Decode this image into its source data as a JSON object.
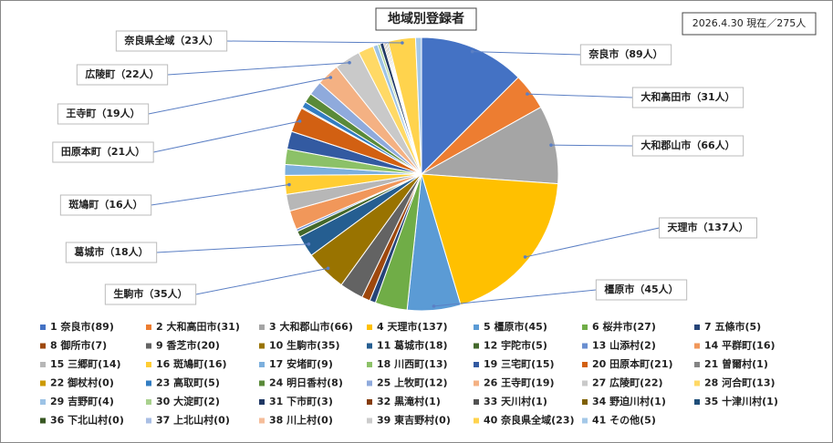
{
  "chart_data": {
    "type": "pie",
    "title": "地域別登録者",
    "subtitle": "2026.4.30 現在／275人",
    "categories": [
      "1 奈良市(89)",
      "2 大和高田市(31)",
      "3 大和郡山市(66)",
      "4 天理市(137)",
      "5 橿原市(45)",
      "6 桜井市(27)",
      "7 五條市(5)",
      "8 御所市(7)",
      "9 香芝市(20)",
      "10 生駒市(35)",
      "11 葛城市(18)",
      "12 宇陀市(5)",
      "13 山添村(2)",
      "14 平群町(16)",
      "15 三郷町(14)",
      "16 斑鳩町(16)",
      "17 安堵町(9)",
      "18 川西町(13)",
      "19 三宅町(15)",
      "20 田原本町(21)",
      "21 曽爾村(1)",
      "22 御杖村(0)",
      "23 高取町(5)",
      "24 明日香村(8)",
      "25 上牧町(12)",
      "26 王寺町(19)",
      "27 広陵町(22)",
      "28 河合町(13)",
      "29 吉野町(4)",
      "30 大淀町(2)",
      "31 下市町(3)",
      "32 黒滝村(1)",
      "33 天川村(1)",
      "34 野迫川村(1)",
      "35 十津川村(1)",
      "36 下北山村(0)",
      "37 上北山村(0)",
      "38 川上村(0)",
      "39 東吉野村(0)",
      "40 奈良県全域(23)",
      "41 その他(5)"
    ],
    "values": [
      89,
      31,
      66,
      137,
      45,
      27,
      5,
      7,
      20,
      35,
      18,
      5,
      2,
      16,
      14,
      16,
      9,
      13,
      15,
      21,
      1,
      0,
      5,
      8,
      12,
      19,
      22,
      13,
      4,
      2,
      3,
      1,
      1,
      1,
      1,
      0,
      0,
      0,
      0,
      23,
      5
    ],
    "value_labels": [
      "奈良市（89人）",
      "大和高田市（31人）",
      "大和郡山市（66人）",
      "天理市（137人）",
      "橿原市（45人）",
      null,
      null,
      null,
      null,
      "生駒市（35人）",
      "葛城市（18人）",
      null,
      null,
      null,
      null,
      "斑鳩町（16人）",
      null,
      null,
      null,
      "田原本町（21人）",
      null,
      null,
      null,
      null,
      null,
      "王寺町（19人）",
      "広陵町（22人）",
      null,
      null,
      null,
      null,
      null,
      null,
      null,
      null,
      null,
      null,
      null,
      null,
      "奈良県全域（23人）",
      null
    ],
    "colors": [
      "#4472C4",
      "#ED7D31",
      "#A5A5A5",
      "#FFC000",
      "#5B9BD5",
      "#70AD47",
      "#264478",
      "#9E480E",
      "#636363",
      "#997300",
      "#255E91",
      "#43682B",
      "#698ED0",
      "#F1975A",
      "#B7B7B7",
      "#FFCD33",
      "#7CAFDD",
      "#8CC168",
      "#335AA1",
      "#D26012",
      "#848484",
      "#CC9A00",
      "#327DC2",
      "#5A8A39",
      "#8FAADC",
      "#F4B183",
      "#C9C9C9",
      "#FFD966",
      "#9DC3E6",
      "#A9D18E",
      "#203864",
      "#843C0C",
      "#525252",
      "#7F6000",
      "#1F4E79",
      "#385723",
      "#A9BEE4",
      "#F5BD9A",
      "#CCCCCC",
      "#FFD34D",
      "#A4C8E8"
    ],
    "legend": "bottom"
  }
}
